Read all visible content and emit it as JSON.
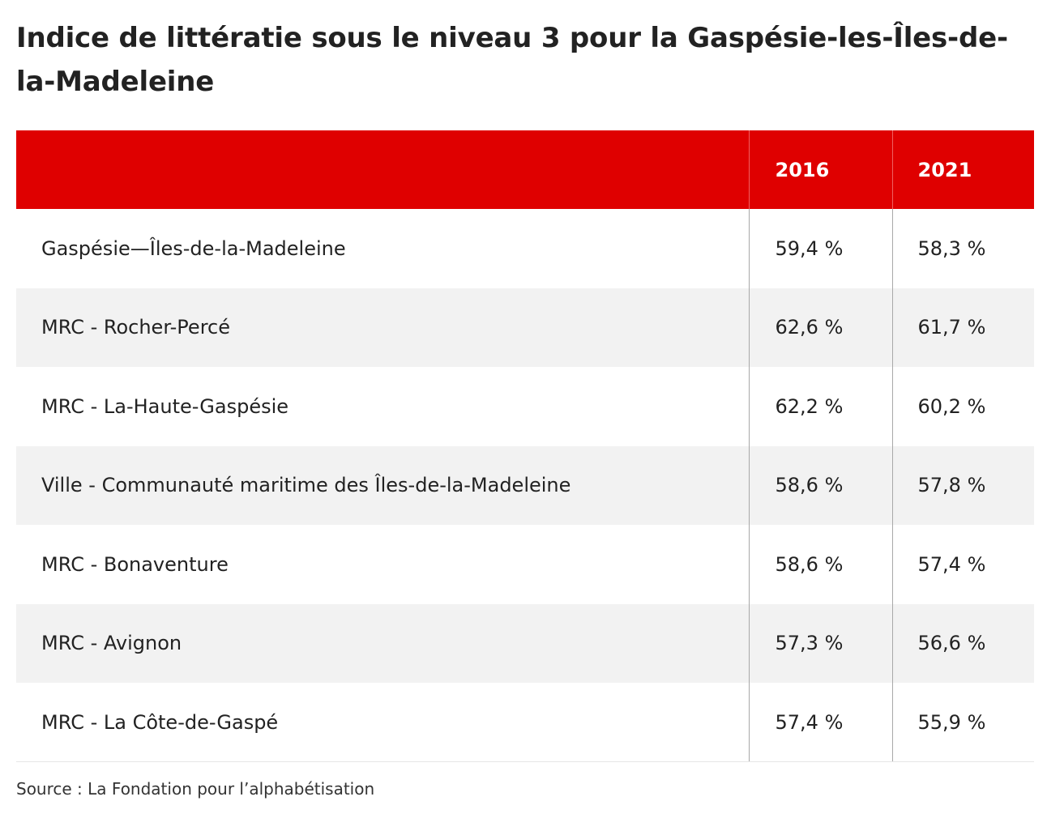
{
  "chart_data": {
    "type": "table",
    "title": "Indice de littératie sous le niveau 3 pour la Gaspésie-les-Îles-de-la-Madeleine",
    "columns": [
      "",
      "2016",
      "2021"
    ],
    "rows": [
      {
        "name": "Gaspésie—Îles-de-la-Madeleine",
        "v2016": "59,4 %",
        "v2021": "58,3 %"
      },
      {
        "name": "MRC - Rocher-Percé",
        "v2016": "62,6 %",
        "v2021": "61,7 %"
      },
      {
        "name": "MRC - La-Haute-Gaspésie",
        "v2016": "62,2 %",
        "v2021": "60,2 %"
      },
      {
        "name": "Ville - Communauté maritime des Îles-de-la-Madeleine",
        "v2016": "58,6 %",
        "v2021": "57,8 %"
      },
      {
        "name": "MRC - Bonaventure",
        "v2016": "58,6 %",
        "v2021": "57,4 %"
      },
      {
        "name": "MRC - Avignon",
        "v2016": "57,3 %",
        "v2021": "56,6 %"
      },
      {
        "name": "MRC - La Côte-de-Gaspé",
        "v2016": "57,4 %",
        "v2021": "55,9 %"
      }
    ],
    "values_2016": [
      59.4,
      62.6,
      62.2,
      58.6,
      58.6,
      57.3,
      57.4
    ],
    "values_2021": [
      58.3,
      61.7,
      60.2,
      57.8,
      57.4,
      56.6,
      55.9
    ],
    "source": "Source : La Fondation pour l’alphabétisation"
  },
  "colors": {
    "header_bg": "#df0000",
    "alt_row_bg": "#f2f2f2",
    "text": "#222222"
  }
}
